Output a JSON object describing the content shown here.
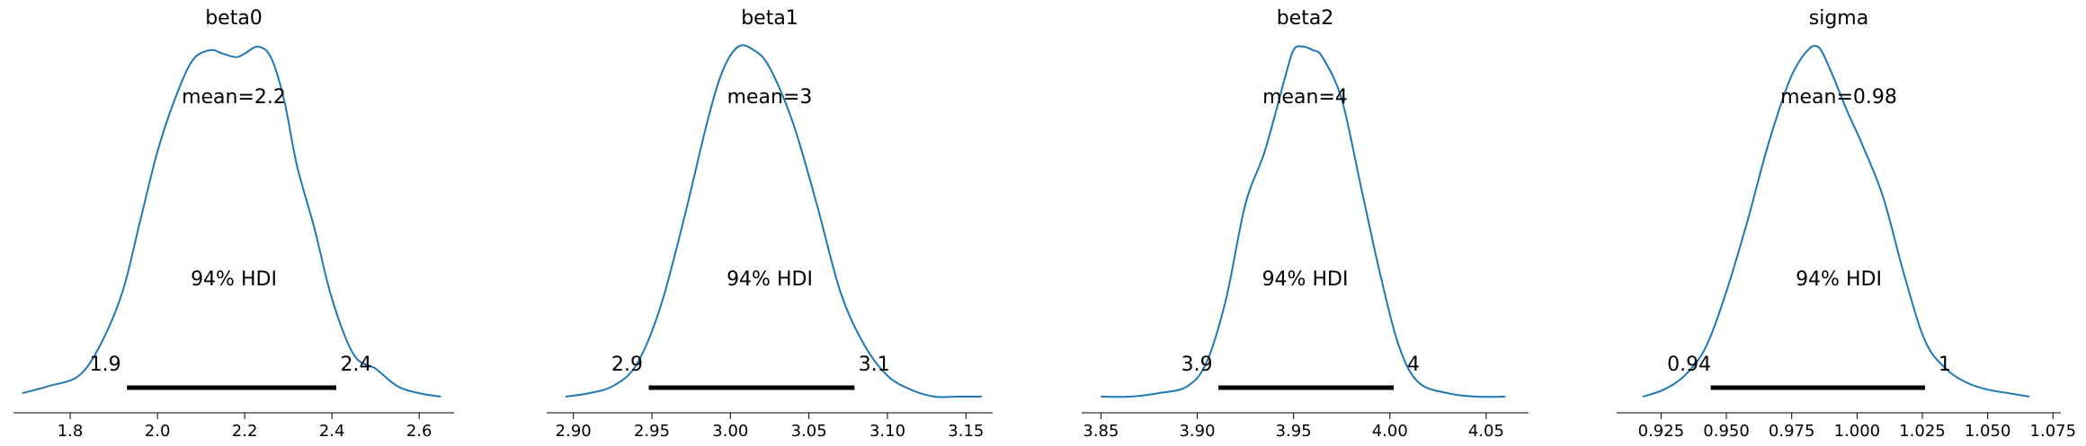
{
  "chart_data": [
    {
      "type": "line",
      "title": "beta0",
      "mean_label": "mean=2.2",
      "hdi_label": "94% HDI",
      "hdi": [
        1.93,
        2.41
      ],
      "hdi_low_label": "1.9",
      "hdi_high_label": "2.4",
      "xlim": [
        1.67,
        2.68
      ],
      "xticks": [
        1.8,
        2.0,
        2.2,
        2.4,
        2.6
      ],
      "xtick_labels": [
        "1.8",
        "2.0",
        "2.2",
        "2.4",
        "2.6"
      ],
      "x": [
        1.69,
        1.75,
        1.82,
        1.87,
        1.92,
        1.96,
        2.0,
        2.04,
        2.08,
        2.12,
        2.15,
        2.18,
        2.2,
        2.23,
        2.26,
        2.29,
        2.32,
        2.36,
        2.4,
        2.45,
        2.5,
        2.55,
        2.6,
        2.65
      ],
      "density": [
        0.01,
        0.03,
        0.06,
        0.15,
        0.3,
        0.5,
        0.7,
        0.85,
        0.96,
        0.99,
        0.98,
        0.97,
        0.98,
        1.0,
        0.97,
        0.85,
        0.66,
        0.48,
        0.28,
        0.12,
        0.08,
        0.03,
        0.01,
        0.0
      ]
    },
    {
      "type": "line",
      "title": "beta1",
      "mean_label": "mean=3",
      "hdi_label": "94% HDI",
      "hdi": [
        2.948,
        3.079
      ],
      "hdi_low_label": "2.9",
      "hdi_high_label": "3.1",
      "xlim": [
        2.883,
        3.167
      ],
      "xticks": [
        2.9,
        2.95,
        3.0,
        3.05,
        3.1,
        3.15
      ],
      "xtick_labels": [
        "2.90",
        "2.95",
        "3.00",
        "3.05",
        "3.10",
        "3.15"
      ],
      "x": [
        2.895,
        2.91,
        2.925,
        2.94,
        2.955,
        2.97,
        2.985,
        2.995,
        3.005,
        3.015,
        3.025,
        3.04,
        3.055,
        3.07,
        3.085,
        3.1,
        3.115,
        3.13,
        3.145,
        3.16
      ],
      "density": [
        0.0,
        0.01,
        0.03,
        0.09,
        0.25,
        0.5,
        0.78,
        0.93,
        1.0,
        0.99,
        0.94,
        0.78,
        0.55,
        0.3,
        0.15,
        0.06,
        0.02,
        0.0,
        0.0,
        0.0
      ]
    },
    {
      "type": "line",
      "title": "beta2",
      "mean_label": "mean=4",
      "hdi_label": "94% HDI",
      "hdi": [
        3.911,
        4.002
      ],
      "hdi_low_label": "3.9",
      "hdi_high_label": "4",
      "xlim": [
        3.84,
        4.072
      ],
      "xticks": [
        3.85,
        3.9,
        3.95,
        4.0,
        4.05
      ],
      "xtick_labels": [
        "3.85",
        "3.90",
        "3.95",
        "4.00",
        "4.05"
      ],
      "x": [
        3.85,
        3.865,
        3.88,
        3.895,
        3.905,
        3.915,
        3.925,
        3.935,
        3.945,
        3.95,
        3.955,
        3.96,
        3.965,
        3.975,
        3.985,
        3.995,
        4.005,
        4.015,
        4.03,
        4.045,
        4.06
      ],
      "density": [
        0.0,
        0.0,
        0.01,
        0.03,
        0.1,
        0.28,
        0.55,
        0.7,
        0.9,
        0.99,
        1.0,
        0.99,
        0.97,
        0.85,
        0.6,
        0.35,
        0.14,
        0.04,
        0.01,
        0.0,
        0.0
      ]
    },
    {
      "type": "line",
      "title": "sigma",
      "mean_label": "mean=0.98",
      "hdi_label": "94% HDI",
      "hdi": [
        0.944,
        1.026
      ],
      "hdi_low_label": "0.94",
      "hdi_high_label": "1",
      "xlim": [
        0.908,
        1.078
      ],
      "xticks": [
        0.925,
        0.95,
        0.975,
        1.0,
        1.025,
        1.05,
        1.075
      ],
      "xtick_labels": [
        "0.925",
        "0.950",
        "0.975",
        "1.000",
        "1.025",
        "1.050",
        "1.075"
      ],
      "x": [
        0.918,
        0.926,
        0.934,
        0.942,
        0.95,
        0.958,
        0.966,
        0.974,
        0.98,
        0.985,
        0.99,
        0.996,
        1.002,
        1.01,
        1.018,
        1.026,
        1.034,
        1.042,
        1.05,
        1.058,
        1.066
      ],
      "density": [
        0.0,
        0.02,
        0.06,
        0.14,
        0.3,
        0.5,
        0.72,
        0.9,
        0.98,
        1.0,
        0.93,
        0.82,
        0.72,
        0.57,
        0.35,
        0.16,
        0.08,
        0.04,
        0.02,
        0.01,
        0.0
      ]
    }
  ],
  "colors": {
    "kde_line": "#1f77b4",
    "hdi_bar": "#000000",
    "axis": "#000000"
  }
}
